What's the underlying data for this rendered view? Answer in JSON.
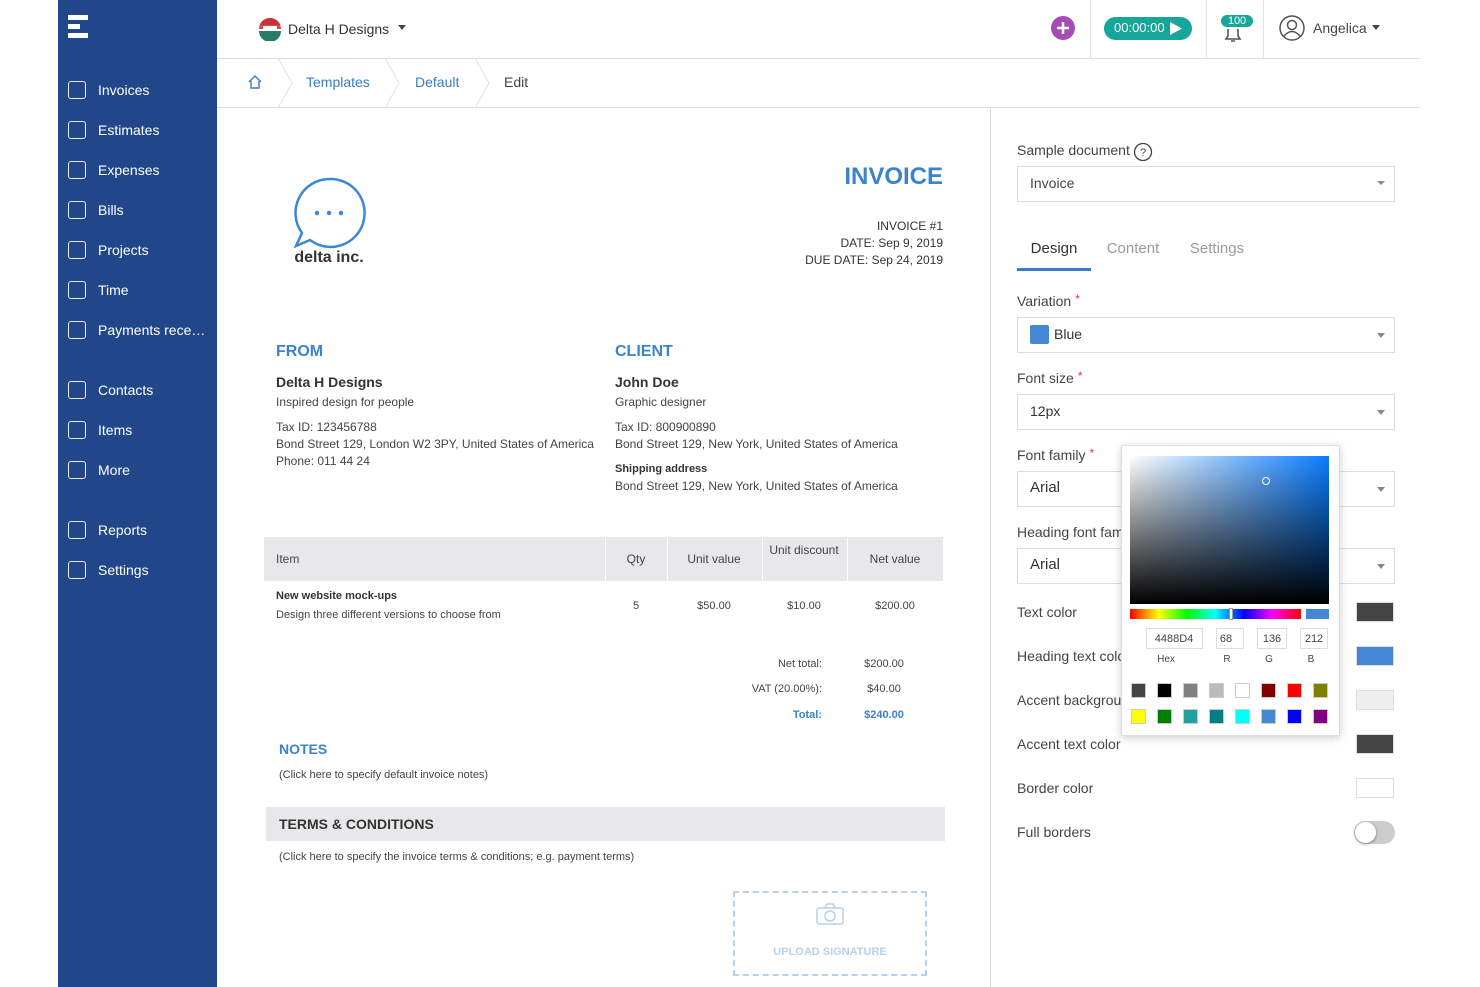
{
  "sidebar": {
    "items": [
      "Invoices",
      "Estimates",
      "Expenses",
      "Bills",
      "Projects",
      "Time",
      "Payments rece…",
      "Contacts",
      "Items",
      "More",
      "Reports",
      "Settings"
    ]
  },
  "header": {
    "company": "Delta H Designs",
    "timer": "00:00:00",
    "notifications": "100",
    "user": "Angelica"
  },
  "breadcrumb": [
    "Templates",
    "Default",
    "Edit"
  ],
  "invoice": {
    "title": "INVOICE",
    "number": "INVOICE #1",
    "date": "DATE: Sep 9, 2019",
    "due_date": "DUE DATE: Sep 24, 2019",
    "logo_text": "delta inc.",
    "from": {
      "heading": "FROM",
      "name": "Delta H Designs",
      "tagline": "Inspired design for people",
      "tax_id": "Tax ID: 123456788",
      "address": "Bond Street 129, London W2 3PY, United States of America",
      "phone": "Phone: 011 44 24"
    },
    "client": {
      "heading": "CLIENT",
      "name": "John Doe",
      "tagline": "Graphic designer",
      "tax_id": "Tax ID: 800900890",
      "address": "Bond Street 129, New York, United States of America",
      "shipping_heading": "Shipping address",
      "shipping_address": "Bond Street 129, New York, United States of America"
    },
    "table": {
      "columns": [
        "Item",
        "Qty",
        "Unit value",
        "Unit discount",
        "Net value"
      ],
      "rows": [
        {
          "item": "New website mock-ups",
          "description": "Design three different versions to choose from",
          "qty": "5",
          "unit_value": "$50.00",
          "unit_discount": "$10.00",
          "net_value": "$200.00"
        }
      ]
    },
    "totals": [
      {
        "label": "Net total:",
        "value": "$200.00"
      },
      {
        "label": "VAT (20.00%):",
        "value": "$40.00"
      },
      {
        "label": "Total:",
        "value": "$240.00"
      }
    ],
    "notes_heading": "NOTES",
    "notes": "(Click here to specify default invoice notes)",
    "terms_heading": "TERMS & CONDITIONS",
    "terms": "(Click here to specify the invoice terms & conditions; e.g. payment terms)",
    "signature": "UPLOAD SIGNATURE"
  },
  "panel": {
    "sample_label": "Sample document",
    "sample_value": "Invoice",
    "tabs": [
      "Design",
      "Content",
      "Settings"
    ],
    "selects": [
      {
        "label": "Variation",
        "required": "*",
        "value": "Blue"
      },
      {
        "label": "Font size",
        "required": "*",
        "value": "12px"
      },
      {
        "label": "Font family",
        "required": "*",
        "value": "Arial"
      },
      {
        "label": "Heading font family",
        "value": "Arial"
      }
    ],
    "colors": [
      {
        "label": "Text color",
        "color": "#444444"
      },
      {
        "label": "Heading text color",
        "color": "#4488d4"
      },
      {
        "label": "Accent background color",
        "color": "#eeeeee"
      },
      {
        "label": "Accent text color",
        "color": "#444444"
      },
      {
        "label": "Border color",
        "color": "#ffffff"
      }
    ],
    "toggle_label": "Full borders"
  },
  "color_picker": {
    "hex": "4488D4",
    "r": "68",
    "g": "136",
    "b": "212",
    "labels": [
      "Hex",
      "R",
      "G",
      "B"
    ],
    "swatches": [
      "#444444",
      "#000000",
      "#808080",
      "#bbbbbb",
      "#ffffff",
      "#800000",
      "#ff0000",
      "#808000",
      "#ffff00",
      "#008000",
      "#20a0a0",
      "#008080",
      "#00ffff",
      "#4488d4",
      "#0000ff",
      "#800080"
    ]
  }
}
